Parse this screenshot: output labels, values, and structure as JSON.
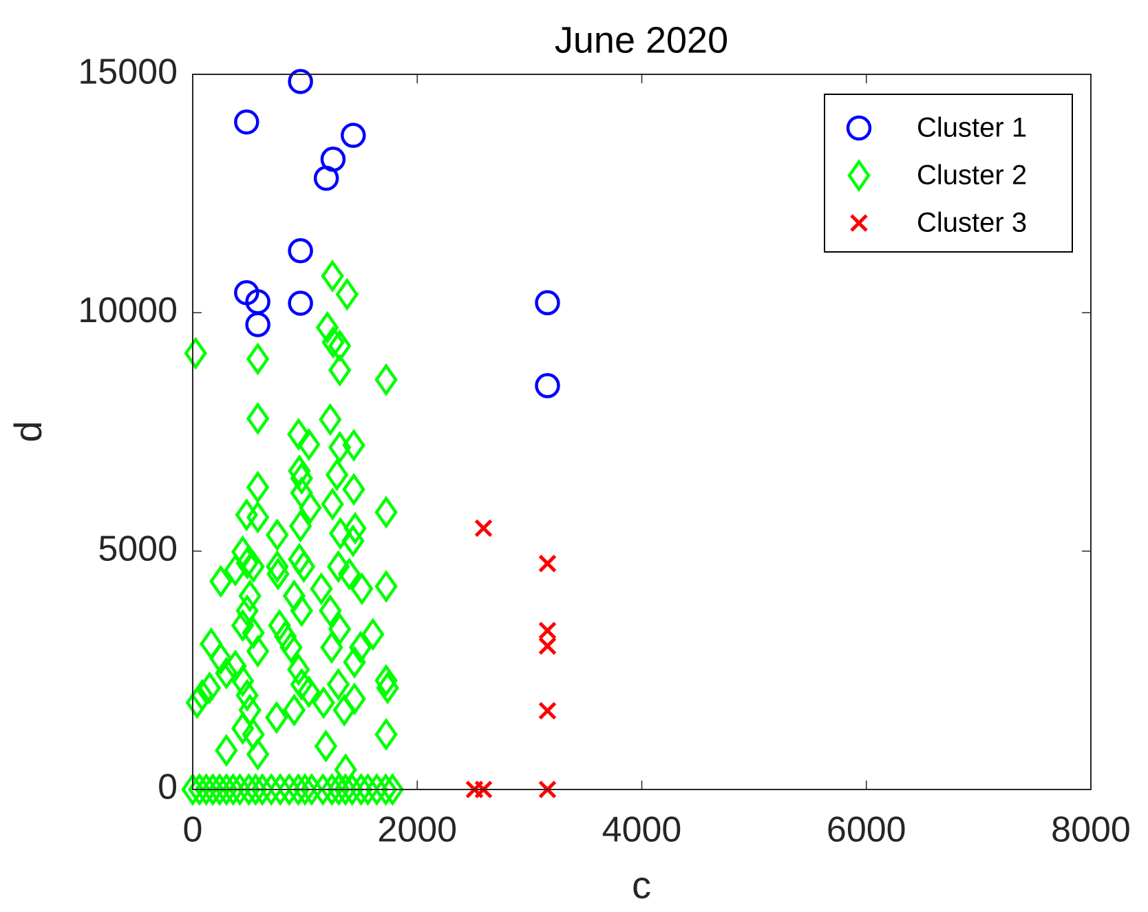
{
  "chart_data": {
    "type": "scatter",
    "title": "June 2020",
    "xlabel": "c",
    "ylabel": "d",
    "xlim": [
      0,
      8000
    ],
    "ylim": [
      0,
      15000
    ],
    "xticks": [
      0,
      2000,
      4000,
      6000,
      8000
    ],
    "yticks": [
      0,
      5000,
      10000,
      15000
    ],
    "legend": "upper right",
    "box": true,
    "series": [
      {
        "name": "Cluster 1",
        "color": "#0000ff",
        "marker": "o",
        "x": [
          960,
          480,
          1430,
          1250,
          1190,
          960,
          480,
          580,
          580,
          960,
          3160,
          3160
        ],
        "y": [
          14850,
          14000,
          13720,
          13220,
          12820,
          11300,
          10420,
          10230,
          9750,
          10200,
          10210,
          8470
        ]
      },
      {
        "name": "Cluster 2",
        "color": "#00ff00",
        "marker": "d",
        "x": [
          26,
          580,
          580,
          580,
          480,
          580,
          1245,
          1375,
          1199,
          1251,
          1310,
          1310,
          1723,
          1225,
          943,
          1035,
          1435,
          1310,
          950,
          970,
          1285,
          1245,
          1435,
          970,
          1048,
          960,
          1723,
          1316,
          1447,
          1428,
          753,
          445,
          485,
          540,
          380,
          250,
          753,
          760,
          950,
          990,
          1297,
          1395,
          1507,
          1723,
          1146,
          904,
          970,
          510,
          485,
          1225,
          1310,
          445,
          540,
          580,
          773,
          825,
          877,
          1605,
          1494,
          1441,
          1238,
          164,
          250,
          380,
          445,
          300,
          85,
          39,
          150,
          943,
          970,
          1035,
          1297,
          1166,
          1350,
          1441,
          1723,
          1736,
          1723,
          904,
          747,
          485,
          510,
          445,
          540,
          300,
          580,
          1186,
          1362,
          0,
          60,
          120,
          180,
          240,
          300,
          360,
          420,
          500,
          560,
          620,
          700,
          780,
          860,
          940,
          1000,
          1060,
          1160,
          1240,
          1300,
          1360,
          1420,
          1500,
          1560,
          1640,
          1720,
          1780
        ],
        "y": [
          9150,
          9030,
          7780,
          6340,
          5760,
          5710,
          10770,
          10385,
          9690,
          9380,
          9305,
          8795,
          8595,
          7760,
          7450,
          7235,
          7220,
          7175,
          6680,
          6525,
          6600,
          5985,
          6295,
          6220,
          5910,
          5525,
          5815,
          5370,
          5478,
          5215,
          5340,
          4985,
          4750,
          4675,
          4600,
          4365,
          4675,
          4520,
          4830,
          4675,
          4675,
          4520,
          4210,
          4260,
          4210,
          4060,
          3750,
          4060,
          3750,
          3750,
          3365,
          3440,
          3285,
          2900,
          3440,
          3210,
          2980,
          3255,
          2980,
          2670,
          2980,
          3055,
          2745,
          2590,
          2280,
          2440,
          1975,
          1820,
          2130,
          2515,
          2205,
          2050,
          2205,
          1820,
          1665,
          1900,
          2285,
          2130,
          1155,
          1665,
          1510,
          1975,
          1665,
          1280,
          1155,
          820,
          740,
          910,
          415,
          0,
          0,
          0,
          0,
          0,
          0,
          0,
          0,
          0,
          0,
          0,
          0,
          0,
          0,
          0,
          0,
          0,
          0,
          0,
          0,
          0,
          0,
          0,
          0,
          0,
          0,
          0
        ]
      },
      {
        "name": "Cluster 3",
        "color": "#ff0000",
        "marker": "x",
        "x": [
          2590,
          3160,
          3160,
          3160,
          3160,
          3160,
          2510,
          2590
        ],
        "y": [
          5480,
          4740,
          3333,
          3009,
          1651,
          0,
          0,
          0
        ]
      }
    ]
  }
}
